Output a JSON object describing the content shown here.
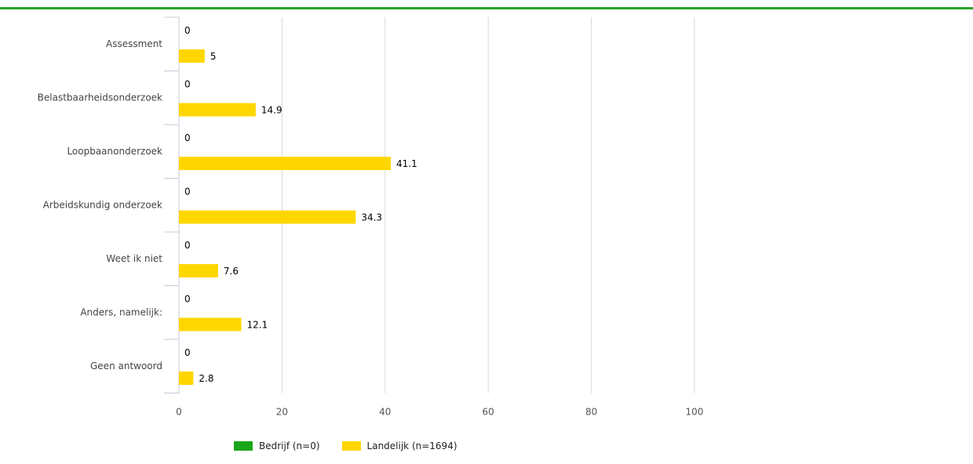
{
  "chart_data": {
    "type": "bar",
    "orientation": "horizontal",
    "categories": [
      "Assessment",
      "Belastbaarheidsonderzoek",
      "Loopbaanonderzoek",
      "Arbeidskundig onderzoek",
      "Weet ik niet",
      "Anders, namelijk:",
      "Geen antwoord"
    ],
    "series": [
      {
        "name": "Bedrijf (n=0)",
        "color": "#1aa51a",
        "values": [
          0,
          0,
          0,
          0,
          0,
          0,
          0
        ]
      },
      {
        "name": "Landelijk (n=1694)",
        "color": "#ffd700",
        "values": [
          5,
          14.9,
          41.1,
          34.3,
          7.6,
          12.1,
          2.8
        ]
      }
    ],
    "value_labels": [
      [
        "0",
        "0",
        "0",
        "0",
        "0",
        "0",
        "0"
      ],
      [
        "5",
        "14.9",
        "41.1",
        "34.3",
        "7.6",
        "12.1",
        "2.8"
      ]
    ],
    "xlim": [
      0,
      100
    ],
    "xticks": [
      "0",
      "20",
      "40",
      "60",
      "80",
      "100"
    ],
    "xtick_values": [
      0,
      20,
      40,
      60,
      80,
      100
    ],
    "grid": true,
    "legend_position": "bottom"
  }
}
